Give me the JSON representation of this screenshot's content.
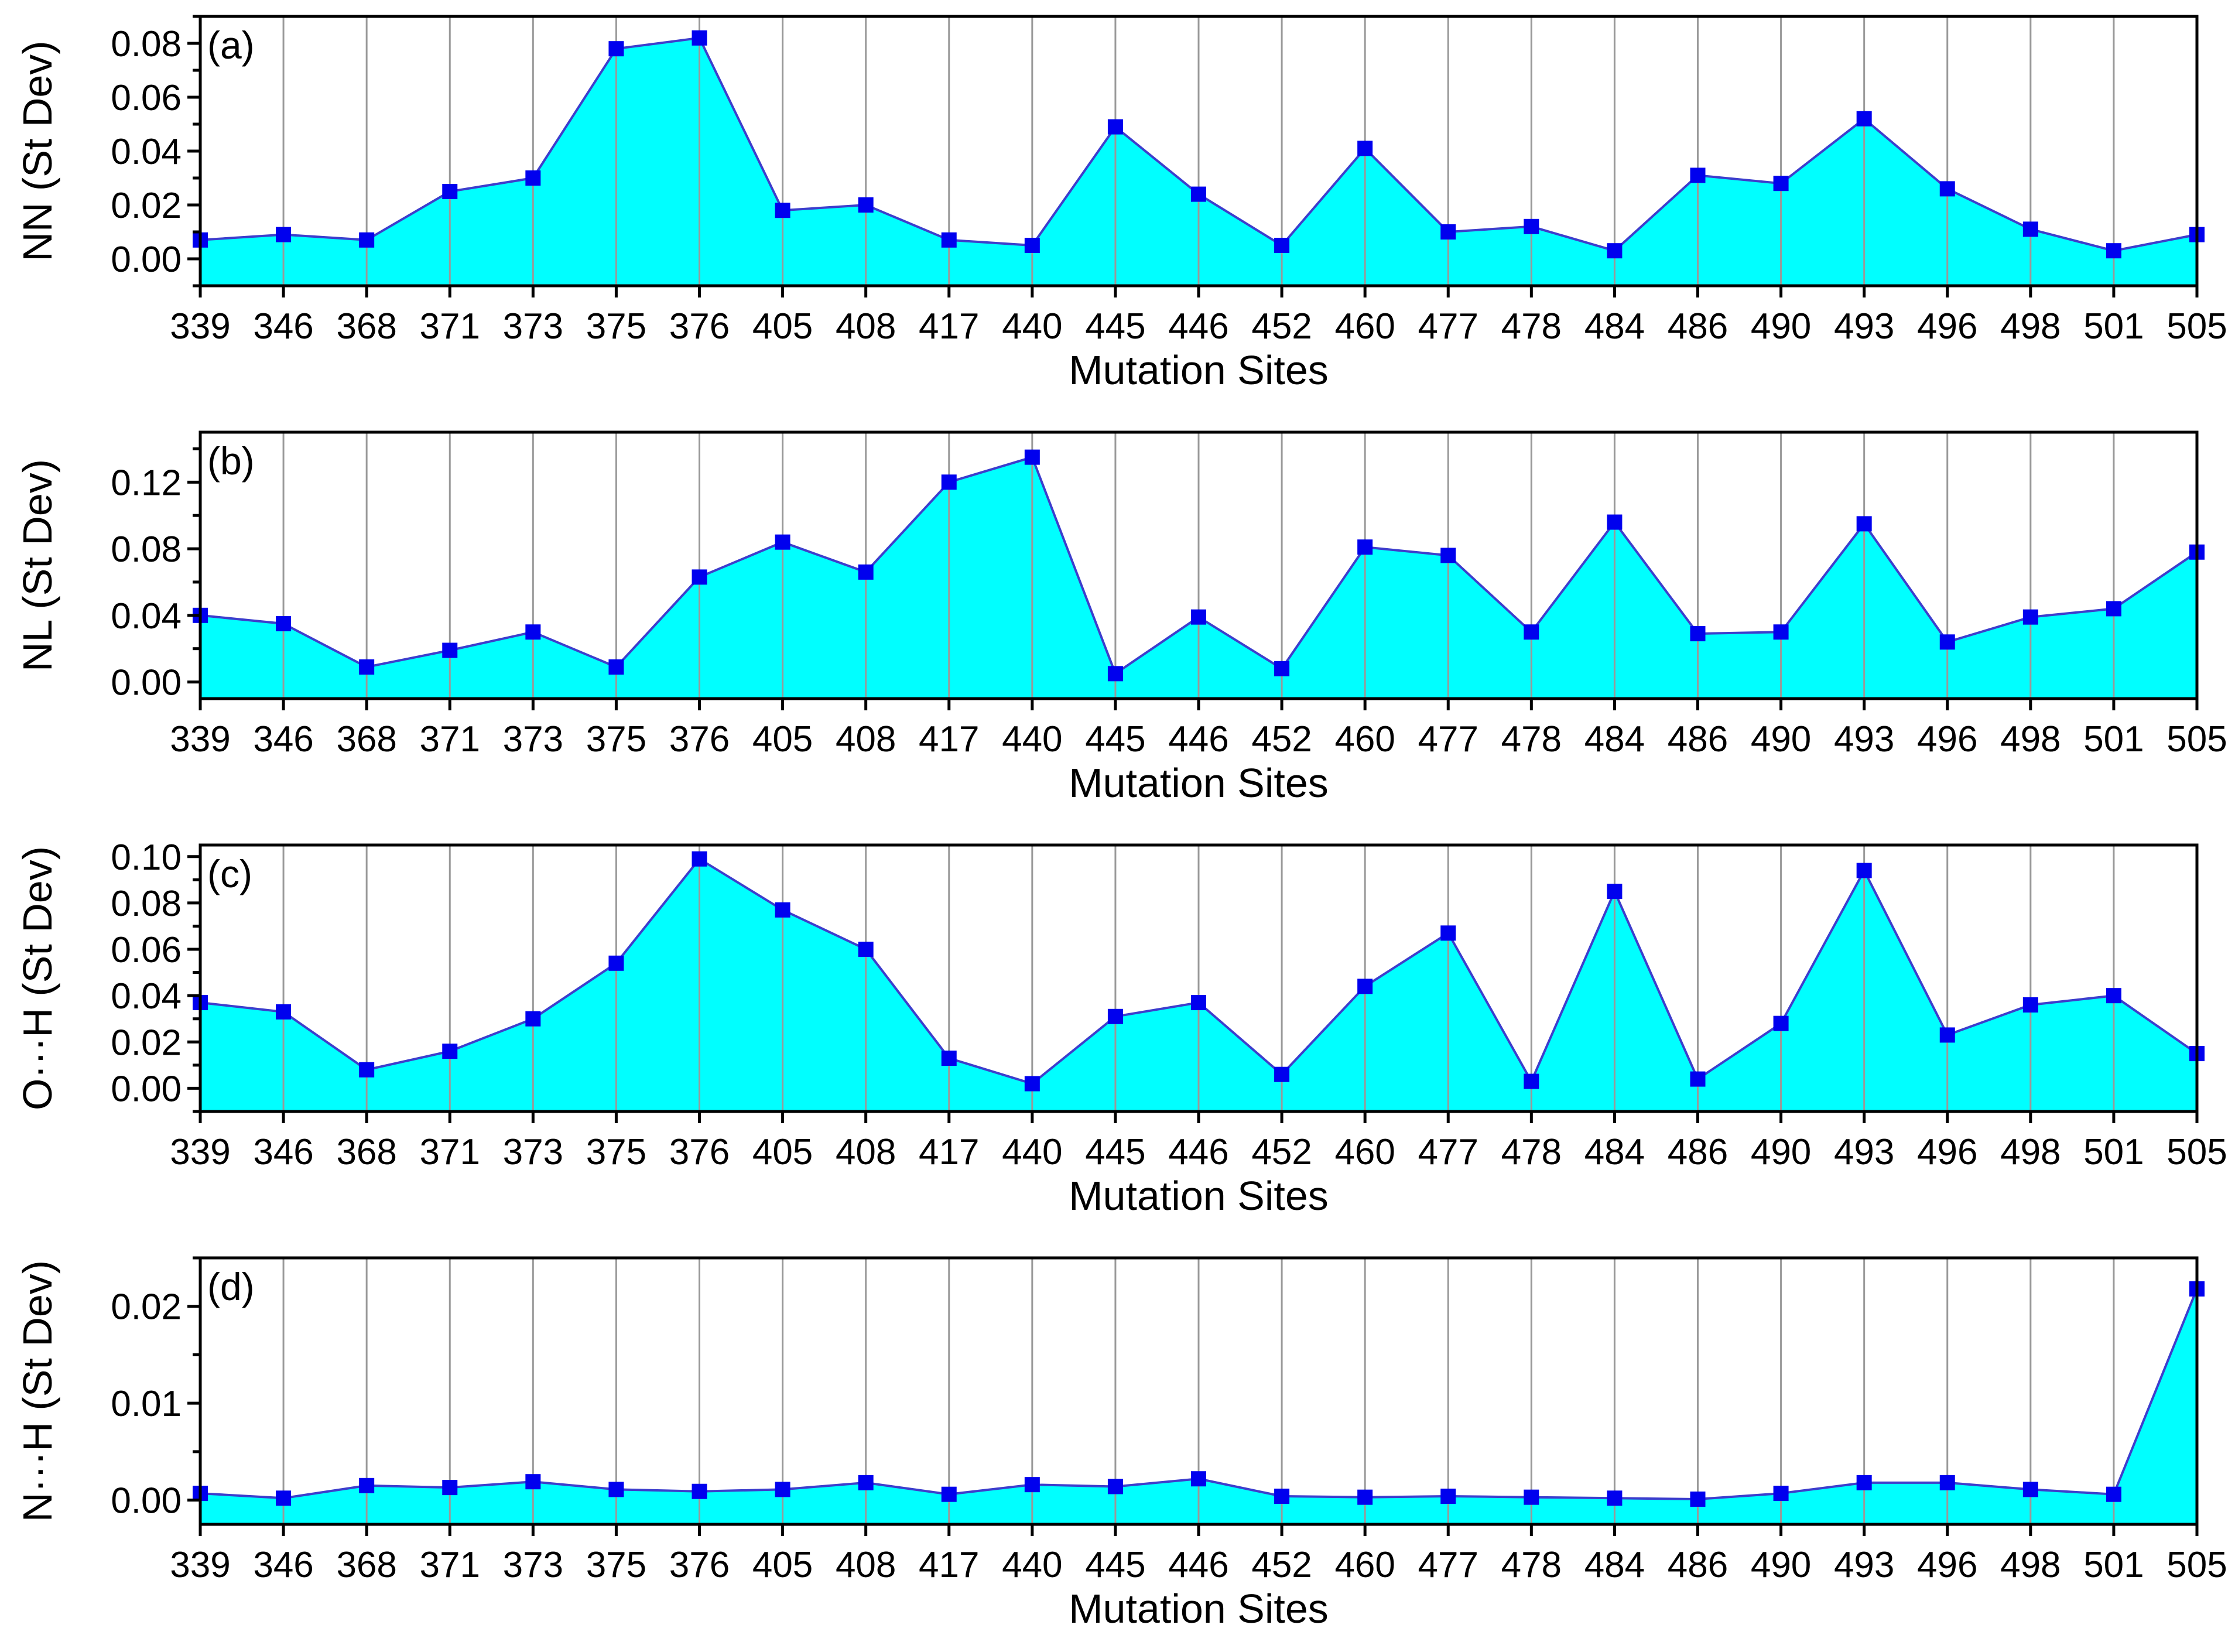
{
  "chart_data": [
    {
      "type": "area",
      "panel_label": "(a)",
      "xlabel": "Mutation Sites",
      "ylabel": "NN (St Dev)",
      "categories": [
        "339",
        "346",
        "368",
        "371",
        "373",
        "375",
        "376",
        "405",
        "408",
        "417",
        "440",
        "445",
        "446",
        "452",
        "460",
        "477",
        "478",
        "484",
        "486",
        "490",
        "493",
        "496",
        "498",
        "501",
        "505"
      ],
      "values": [
        0.007,
        0.009,
        0.007,
        0.025,
        0.03,
        0.078,
        0.082,
        0.018,
        0.02,
        0.007,
        0.005,
        0.049,
        0.024,
        0.005,
        0.041,
        0.01,
        0.012,
        0.003,
        0.031,
        0.028,
        0.052,
        0.026,
        0.011,
        0.003,
        0.009
      ],
      "ylim": [
        -0.01,
        0.09
      ],
      "yticks": [
        0.0,
        0.02,
        0.04,
        0.06,
        0.08
      ],
      "ytick_labels": [
        "0.00",
        "0.02",
        "0.04",
        "0.06",
        "0.08"
      ],
      "grid": "vertical"
    },
    {
      "type": "area",
      "panel_label": "(b)",
      "xlabel": "Mutation Sites",
      "ylabel": "NL (St Dev)",
      "categories": [
        "339",
        "346",
        "368",
        "371",
        "373",
        "375",
        "376",
        "405",
        "408",
        "417",
        "440",
        "445",
        "446",
        "452",
        "460",
        "477",
        "478",
        "484",
        "486",
        "490",
        "493",
        "496",
        "498",
        "501",
        "505"
      ],
      "values": [
        0.04,
        0.035,
        0.009,
        0.019,
        0.03,
        0.009,
        0.063,
        0.084,
        0.066,
        0.12,
        0.135,
        0.005,
        0.039,
        0.008,
        0.081,
        0.076,
        0.03,
        0.096,
        0.029,
        0.03,
        0.095,
        0.024,
        0.039,
        0.044,
        0.078
      ],
      "ylim": [
        -0.01,
        0.15
      ],
      "yticks": [
        0.0,
        0.04,
        0.08,
        0.12
      ],
      "ytick_labels": [
        "0.00",
        "0.04",
        "0.08",
        "0.12"
      ],
      "grid": "vertical"
    },
    {
      "type": "area",
      "panel_label": "(c)",
      "xlabel": "Mutation Sites",
      "ylabel": "O···H (St Dev)",
      "categories": [
        "339",
        "346",
        "368",
        "371",
        "373",
        "375",
        "376",
        "405",
        "408",
        "417",
        "440",
        "445",
        "446",
        "452",
        "460",
        "477",
        "478",
        "484",
        "486",
        "490",
        "493",
        "496",
        "498",
        "501",
        "505"
      ],
      "values": [
        0.037,
        0.033,
        0.008,
        0.016,
        0.03,
        0.054,
        0.099,
        0.077,
        0.06,
        0.013,
        0.002,
        0.031,
        0.037,
        0.006,
        0.044,
        0.067,
        0.003,
        0.085,
        0.004,
        0.028,
        0.094,
        0.023,
        0.036,
        0.04,
        0.015
      ],
      "ylim": [
        -0.01,
        0.105
      ],
      "yticks": [
        0.0,
        0.02,
        0.04,
        0.06,
        0.08,
        0.1
      ],
      "ytick_labels": [
        "0.00",
        "0.02",
        "0.04",
        "0.06",
        "0.08",
        "0.10"
      ],
      "grid": "vertical"
    },
    {
      "type": "area",
      "panel_label": "(d)",
      "xlabel": "Mutation Sites",
      "ylabel": "N···H (St Dev)",
      "categories": [
        "339",
        "346",
        "368",
        "371",
        "373",
        "375",
        "376",
        "405",
        "408",
        "417",
        "440",
        "445",
        "446",
        "452",
        "460",
        "477",
        "478",
        "484",
        "486",
        "490",
        "493",
        "496",
        "498",
        "501",
        "505"
      ],
      "values": [
        0.0007,
        0.0002,
        0.0015,
        0.0013,
        0.0019,
        0.0011,
        0.0009,
        0.0011,
        0.0018,
        0.0006,
        0.0016,
        0.0014,
        0.0022,
        0.0004,
        0.0003,
        0.0004,
        0.0003,
        0.0002,
        0.0001,
        0.0007,
        0.0018,
        0.0018,
        0.0011,
        0.0006,
        0.0218
      ],
      "ylim": [
        -0.0025,
        0.025
      ],
      "yticks": [
        0.0,
        0.01,
        0.02
      ],
      "ytick_labels": [
        "0.00",
        "0.01",
        "0.02"
      ],
      "grid": "vertical"
    }
  ],
  "colors": {
    "fill": "#00ffff",
    "line": "#3d3dcc",
    "marker": "#0000ee",
    "grid": "#999999",
    "axis": "#000000"
  }
}
